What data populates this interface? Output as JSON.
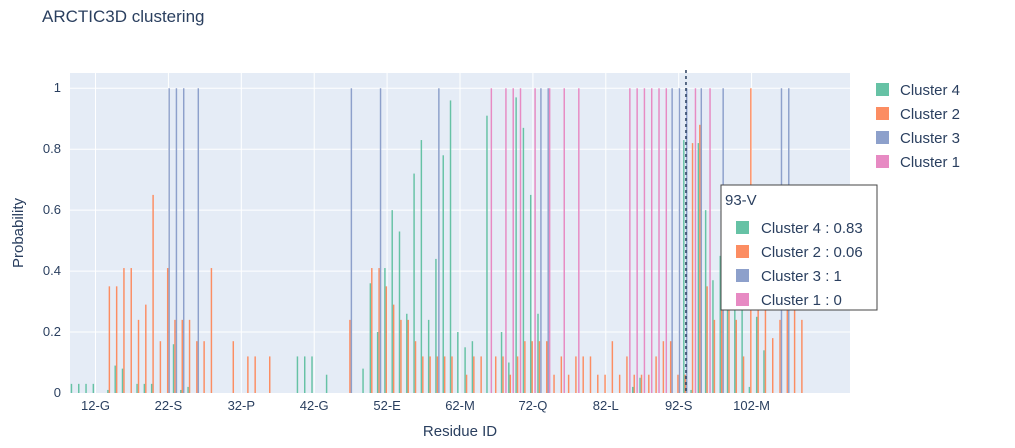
{
  "chart_data": {
    "type": "bar",
    "title": "ARCTIC3D clustering",
    "xlabel": "Residue ID",
    "ylabel": "Probability",
    "ylim": [
      0,
      1.05
    ],
    "x_range": [
      8.5,
      115.5
    ],
    "y_ticks": [
      0,
      0.2,
      0.4,
      0.6,
      0.8,
      1
    ],
    "y_tick_labels": [
      "0",
      "0.2",
      "0.4",
      "0.6",
      "0.8",
      "1"
    ],
    "x_ticks": [
      12,
      22,
      32,
      42,
      52,
      62,
      72,
      82,
      92,
      102
    ],
    "x_tick_labels": [
      "12-G",
      "22-S",
      "32-P",
      "42-G",
      "52-E",
      "62-M",
      "72-Q",
      "82-L",
      "92-S",
      "102-M"
    ],
    "legend_position": "right",
    "grid": true,
    "series": [
      {
        "name": "Cluster 4",
        "color": "#66c2a5",
        "points": [
          [
            9,
            0.03
          ],
          [
            10,
            0.03
          ],
          [
            11,
            0.03
          ],
          [
            12,
            0.03
          ],
          [
            14,
            0.01
          ],
          [
            15,
            0.09
          ],
          [
            16,
            0.08
          ],
          [
            18,
            0.03
          ],
          [
            19,
            0.03
          ],
          [
            20,
            0.03
          ],
          [
            23,
            0.16
          ],
          [
            24,
            0.01
          ],
          [
            25,
            0.02
          ],
          [
            40,
            0.12
          ],
          [
            41,
            0.12
          ],
          [
            42,
            0.12
          ],
          [
            44,
            0.06
          ],
          [
            49,
            0.08
          ],
          [
            50,
            0.36
          ],
          [
            51,
            0.2
          ],
          [
            52,
            0.41
          ],
          [
            53,
            0.6
          ],
          [
            54,
            0.53
          ],
          [
            55,
            0.26
          ],
          [
            56,
            0.72
          ],
          [
            57,
            0.83
          ],
          [
            58,
            0.24
          ],
          [
            59,
            0.44
          ],
          [
            60,
            0.78
          ],
          [
            61,
            0.96
          ],
          [
            62,
            0.2
          ],
          [
            63,
            0.15
          ],
          [
            64,
            0.17
          ],
          [
            66,
            0.91
          ],
          [
            68,
            0.2
          ],
          [
            69,
            0.1
          ],
          [
            70,
            0.97
          ],
          [
            71,
            0.87
          ],
          [
            72,
            0.65
          ],
          [
            73,
            0.26
          ],
          [
            86,
            0.02
          ],
          [
            87,
            0.05
          ],
          [
            93,
            0.83
          ],
          [
            94,
            0.01
          ],
          [
            95,
            0.82
          ],
          [
            96,
            0.6
          ],
          [
            97,
            0.37
          ],
          [
            98,
            0.45
          ],
          [
            99,
            0.52
          ],
          [
            100,
            0.32
          ],
          [
            101,
            0.3
          ],
          [
            102,
            0.02
          ],
          [
            103,
            0.25
          ],
          [
            104,
            0.14
          ]
        ]
      },
      {
        "name": "Cluster 2",
        "color": "#fc8d62",
        "points": [
          [
            14,
            0.35
          ],
          [
            15,
            0.35
          ],
          [
            16,
            0.41
          ],
          [
            17,
            0.41
          ],
          [
            18,
            0.24
          ],
          [
            19,
            0.29
          ],
          [
            20,
            0.65
          ],
          [
            21,
            0.17
          ],
          [
            22,
            0.41
          ],
          [
            23,
            0.24
          ],
          [
            24,
            0.24
          ],
          [
            25,
            0.24
          ],
          [
            26,
            0.17
          ],
          [
            27,
            0.17
          ],
          [
            28,
            0.41
          ],
          [
            31,
            0.17
          ],
          [
            33,
            0.12
          ],
          [
            34,
            0.12
          ],
          [
            36,
            0.12
          ],
          [
            47,
            0.24
          ],
          [
            50,
            0.41
          ],
          [
            51,
            0.41
          ],
          [
            52,
            0.35
          ],
          [
            53,
            0.29
          ],
          [
            54,
            0.24
          ],
          [
            55,
            0.24
          ],
          [
            56,
            0.17
          ],
          [
            57,
            0.12
          ],
          [
            58,
            0.12
          ],
          [
            59,
            0.12
          ],
          [
            60,
            0.12
          ],
          [
            61,
            0.12
          ],
          [
            63,
            0.06
          ],
          [
            64,
            0.12
          ],
          [
            65,
            0.12
          ],
          [
            67,
            0.12
          ],
          [
            68,
            0.12
          ],
          [
            69,
            0.06
          ],
          [
            70,
            0.12
          ],
          [
            71,
            0.17
          ],
          [
            72,
            0.17
          ],
          [
            73,
            0.17
          ],
          [
            74,
            0.17
          ],
          [
            75,
            0.06
          ],
          [
            76,
            0.12
          ],
          [
            77,
            0.06
          ],
          [
            78,
            0.12
          ],
          [
            79,
            0.12
          ],
          [
            80,
            0.12
          ],
          [
            81,
            0.06
          ],
          [
            82,
            0.06
          ],
          [
            83,
            0.17
          ],
          [
            84,
            0.06
          ],
          [
            85,
            0.12
          ],
          [
            86,
            0.06
          ],
          [
            87,
            0.06
          ],
          [
            88,
            0.06
          ],
          [
            89,
            0.12
          ],
          [
            90,
            0.17
          ],
          [
            91,
            0.17
          ],
          [
            92,
            0.06
          ],
          [
            93,
            0.06
          ],
          [
            94,
            0.82
          ],
          [
            95,
            0.88
          ],
          [
            96,
            0.35
          ],
          [
            97,
            0.24
          ],
          [
            98,
            0.35
          ],
          [
            99,
            0.41
          ],
          [
            100,
            0.24
          ],
          [
            101,
            0.12
          ],
          [
            102,
            1
          ],
          [
            103,
            0.59
          ],
          [
            104,
            0.4
          ],
          [
            105,
            0.18
          ],
          [
            106,
            0.24
          ],
          [
            107,
            0.29
          ],
          [
            108,
            0.35
          ],
          [
            109,
            0.24
          ]
        ]
      },
      {
        "name": "Cluster 3",
        "color": "#8da0cb",
        "points": [
          [
            22,
            1
          ],
          [
            23,
            1
          ],
          [
            24,
            1
          ],
          [
            26,
            1
          ],
          [
            47,
            1
          ],
          [
            51,
            1
          ],
          [
            59,
            1
          ],
          [
            73,
            1
          ],
          [
            74,
            1
          ],
          [
            91,
            1
          ],
          [
            92,
            1
          ],
          [
            93,
            1
          ],
          [
            95,
            1
          ],
          [
            98,
            1
          ],
          [
            106,
            1
          ],
          [
            107,
            1
          ]
        ]
      },
      {
        "name": "Cluster 1",
        "color": "#e78ac3",
        "points": [
          [
            66,
            1
          ],
          [
            68,
            1
          ],
          [
            69,
            1
          ],
          [
            70,
            1
          ],
          [
            72,
            1
          ],
          [
            74,
            1
          ],
          [
            76,
            1
          ],
          [
            78,
            1
          ],
          [
            85,
            1
          ],
          [
            86,
            1
          ],
          [
            87,
            1
          ],
          [
            88,
            1
          ],
          [
            89,
            1
          ],
          [
            90,
            1
          ],
          [
            94,
            1
          ],
          [
            96,
            1
          ]
        ]
      }
    ],
    "hover": {
      "residue": 93,
      "label": "93-V",
      "entries": [
        "Cluster 4 : 0.83",
        "Cluster 2 : 0.06",
        "Cluster 3 : 1",
        "Cluster 1 : 0"
      ]
    }
  }
}
